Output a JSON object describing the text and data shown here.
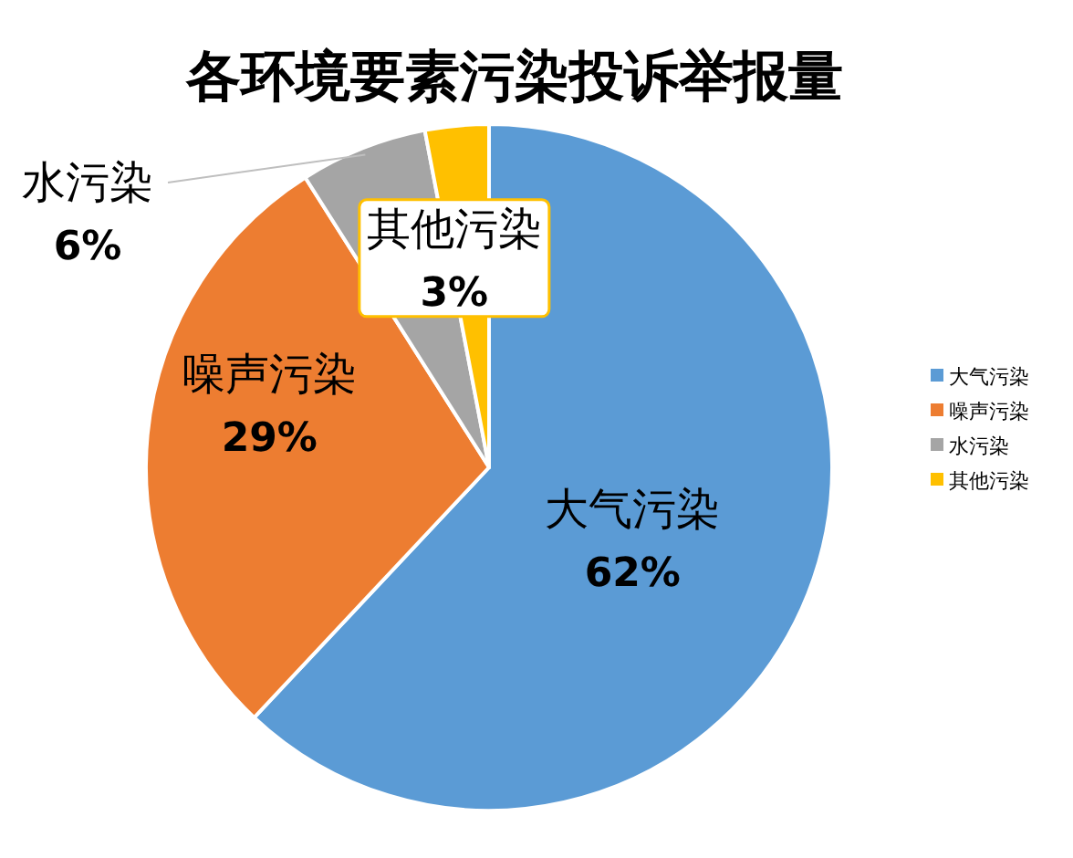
{
  "chart_data": {
    "type": "pie",
    "title": "各环境要素污染投诉举报量",
    "categories": [
      "大气污染",
      "噪声污染",
      "水污染",
      "其他污染"
    ],
    "values": [
      62,
      29,
      6,
      3
    ],
    "value_labels": [
      "62%",
      "29%",
      "6%",
      "3%"
    ],
    "colors": [
      "#5b9bd5",
      "#ed7d31",
      "#a5a5a5",
      "#ffc000"
    ],
    "legend": "right"
  }
}
